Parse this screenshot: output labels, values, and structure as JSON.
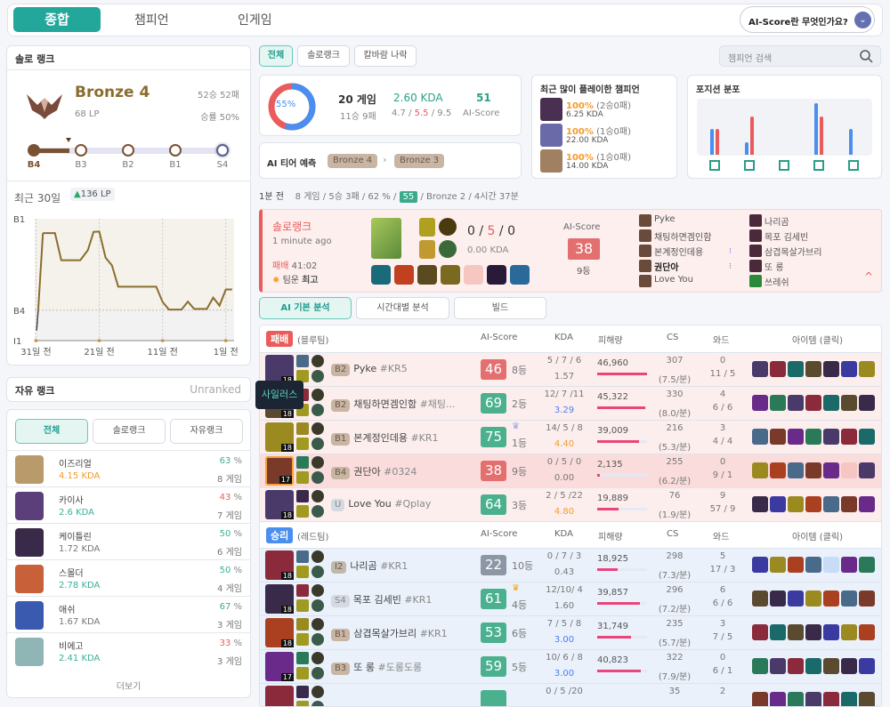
{
  "colors": {
    "accent": "#22a79a",
    "win": "#4a8ef0",
    "loss": "#ea5b5b",
    "bronze": "#8a6d2e",
    "score_green": "#4bb08e",
    "score_red": "#e36f6f",
    "score_gray": "#8c96a5"
  },
  "nav": {
    "tabs": [
      "종합",
      "챔피언",
      "인게임"
    ],
    "help": "AI-Score란 무엇인가요?"
  },
  "solo": {
    "title": "솔로 랭크",
    "tier": "Bronze 4",
    "lp": "68 LP",
    "record": "52승 52패",
    "winrate": "승률 50%",
    "steps": [
      "B4",
      "B3",
      "B2",
      "B1",
      "S4"
    ],
    "recent_label": "최근 30일",
    "recent_delta": "136 LP"
  },
  "chart_data": {
    "type": "line",
    "ylabel": "",
    "xlabel": "",
    "y_ticks": [
      "B1",
      "B4",
      "I1"
    ],
    "x_ticks": [
      "31일 전",
      "21일 전",
      "11일 전",
      "1일 전"
    ],
    "y_tick_values_lp": [
      400,
      100,
      0
    ],
    "x_tick_values_days_ago": [
      31,
      21,
      11,
      1
    ],
    "xlim_days_ago": [
      31.2,
      -0.3
    ],
    "ylim_lp": [
      0,
      400
    ],
    "grid": true,
    "color": "#8a6d2e",
    "points": [
      [
        30.9,
        33
      ],
      [
        29.9,
        353
      ],
      [
        28,
        353
      ],
      [
        27,
        264
      ],
      [
        24,
        264
      ],
      [
        22.8,
        297
      ],
      [
        21.9,
        357
      ],
      [
        21,
        358
      ],
      [
        20,
        272
      ],
      [
        19,
        247
      ],
      [
        18,
        177
      ],
      [
        12,
        177
      ],
      [
        11,
        127
      ],
      [
        10,
        102
      ],
      [
        8,
        102
      ],
      [
        7,
        128
      ],
      [
        6,
        104
      ],
      [
        4,
        104
      ],
      [
        3,
        141
      ],
      [
        2,
        115
      ],
      [
        1,
        168
      ],
      [
        0,
        168
      ]
    ]
  },
  "flex": {
    "title": "자유 랭크",
    "status": "Unranked"
  },
  "champ_stats": {
    "tabs": [
      "전체",
      "솔로랭크",
      "자유랭크"
    ],
    "more": "더보기",
    "items": [
      {
        "name": "이즈리얼",
        "kda": "4.15 KDA",
        "kda_color": "#f39c2b",
        "wr": "63",
        "wr_color": "#3aaf9a",
        "games": "8 게임",
        "img": "#b99a6a"
      },
      {
        "name": "카이사",
        "kda": "2.6 KDA",
        "kda_color": "#3aaf9a",
        "wr": "43",
        "wr_color": "#e85c5c",
        "games": "7 게임",
        "img": "#5a3f7a"
      },
      {
        "name": "케이틀린",
        "kda": "1.72 KDA",
        "kda_color": "#777",
        "wr": "50",
        "wr_color": "#3aaf9a",
        "games": "6 게임",
        "img": "#3a2a4a"
      },
      {
        "name": "스몰더",
        "kda": "2.78 KDA",
        "kda_color": "#3aaf9a",
        "wr": "50",
        "wr_color": "#3aaf9a",
        "games": "4 게임",
        "img": "#c8603a"
      },
      {
        "name": "애쉬",
        "kda": "1.67 KDA",
        "kda_color": "#777",
        "wr": "67",
        "wr_color": "#3aaf9a",
        "games": "3 게임",
        "img": "#3a5ab0"
      },
      {
        "name": "비에고",
        "kda": "2.41 KDA",
        "kda_color": "#3aaf9a",
        "wr": "33",
        "wr_color": "#e85c5c",
        "games": "3 게임",
        "img": "#8fb5b5"
      }
    ]
  },
  "filters": {
    "tabs": [
      "전체",
      "솔로랭크",
      "칼바람 나락"
    ],
    "search_placeholder": "챔피언 검색"
  },
  "summary": {
    "winrate": "55%",
    "winrate_value": 55,
    "games": "20 게임",
    "record": "11승 9패",
    "kda": "2.60 KDA",
    "k": "4.7",
    "d": "5.5",
    "a": "9.5",
    "score": "51",
    "score_label": "AI-Score"
  },
  "ai_tier": {
    "label": "AI 티어 예측",
    "from": "Bronze 4",
    "to": "Bronze 3"
  },
  "recent_champs": {
    "title": "최근 많이 플레이한 챔피언",
    "items": [
      {
        "pct": "100%",
        "rec": "(2승0패)",
        "kda": "6.25 KDA",
        "img": "#4a3050"
      },
      {
        "pct": "100%",
        "rec": "(1승0패)",
        "kda": "22.00 KDA",
        "img": "#6a6aa8"
      },
      {
        "pct": "100%",
        "rec": "(1승0패)",
        "kda": "14.00 KDA",
        "img": "#a08060"
      }
    ]
  },
  "positions": {
    "title": "포지션 분포",
    "series": [
      {
        "values": [
          2,
          1,
          0,
          4,
          2
        ],
        "color": "#4a8ef0"
      },
      {
        "values": [
          2,
          3,
          0,
          3,
          0
        ],
        "color": "#ea5b5b"
      }
    ],
    "icons": [
      "top-icon",
      "jungle-icon",
      "mid-icon",
      "bottom-icon",
      "support-icon"
    ]
  },
  "session": {
    "ago": "1분 전",
    "games": "8 게임",
    "record": "5승 3패",
    "wr": "62 %",
    "score": "55",
    "tier": "Bronze 2",
    "time": "4시간 37분"
  },
  "match": {
    "queue": "솔로랭크",
    "ago": "1 minute ago",
    "result": "패배",
    "duration": "41:02",
    "luck_label": "팀운",
    "luck": "최고",
    "k": "0",
    "d": "5",
    "a": "0",
    "kda": "0.00 KDA",
    "score_label": "AI-Score",
    "score": "38",
    "rank": "9등",
    "blue": [
      "Pyke",
      "채팅하면겜인함",
      "본계정인데용",
      "권단아",
      "Love You"
    ],
    "red": [
      "나리곰",
      "목포 김세빈",
      "삼겹목살가브리",
      "또 롱",
      "쓰레쉬"
    ]
  },
  "analysis_tabs": [
    "AI 기본 분석",
    "시간대별 분석",
    "빌드"
  ],
  "table": {
    "headers": [
      "AI-Score",
      "KDA",
      "피해량",
      "CS",
      "와드",
      "아이템 (클릭)"
    ],
    "max_damage": 46960,
    "teams": [
      {
        "result": "패배",
        "side": "(블루팀)",
        "color": "#ea5b5b",
        "bg": "#fdeeee",
        "rows": [
          {
            "tier": "B2",
            "name": "Pyke",
            "tagline": "#KR5",
            "lv": "18",
            "score": "46",
            "sc": "red",
            "rank": "8등",
            "kda": "5 / 7 / 6",
            "ratio": "1.57",
            "rc": "#777",
            "dmg": 46960,
            "dmg_text": "46,960",
            "cs": "307",
            "csm": "(7.5/분)",
            "ward": "0",
            "wards": "11 / 5"
          },
          {
            "tier": "B2",
            "name": "채팅하면겜인함",
            "tagline": "#채팅...",
            "lv": "18",
            "score": "69",
            "sc": "green",
            "rank": "2등",
            "kda": "12/ 7 /11",
            "ratio": "3.29",
            "rc": "#4a7ef0",
            "dmg": 45322,
            "dmg_text": "45,322",
            "cs": "330",
            "csm": "(8.0/분)",
            "ward": "4",
            "wards": "6 / 6"
          },
          {
            "tier": "B1",
            "name": "본계정인데용",
            "tagline": "#KR1",
            "lv": "18",
            "score": "75",
            "sc": "green",
            "rank": "1등",
            "crown": "#9aa6d8",
            "kda": "14/ 5 / 8",
            "ratio": "4.40",
            "rc": "#f39c2b",
            "dmg": 39009,
            "dmg_text": "39,009",
            "cs": "216",
            "csm": "(5.3/분)",
            "ward": "3",
            "wards": "4 / 4"
          },
          {
            "tier": "B4",
            "name": "권단아",
            "tagline": "#0324",
            "lv": "17",
            "score": "38",
            "sc": "red",
            "rank": "9등",
            "kda": "0 / 5 / 0",
            "ratio": "0.00",
            "rc": "#777",
            "dmg": 2135,
            "dmg_text": "2,135",
            "cs": "255",
            "csm": "(6.2/분)",
            "ward": "0",
            "wards": "9 / 1",
            "me": true,
            "empty": 5
          },
          {
            "tier": "U",
            "name": "Love You",
            "tagline": "#Qplay",
            "lv": "18",
            "score": "64",
            "sc": "green",
            "rank": "3등",
            "kda": "2 / 5 /22",
            "ratio": "4.80",
            "rc": "#f39c2b",
            "dmg": 19889,
            "dmg_text": "19,889",
            "cs": "76",
            "csm": "(1.9/분)",
            "ward": "9",
            "wards": "57 / 9"
          }
        ]
      },
      {
        "result": "승리",
        "side": "(레드팀)",
        "color": "#4a8ef0",
        "bg": "#eaf1fb",
        "rows": [
          {
            "tier": "I2",
            "name": "나리곰",
            "tagline": "#KR1",
            "lv": "18",
            "score": "22",
            "sc": "gray",
            "rank": "10등",
            "kda": "0 / 7 / 3",
            "ratio": "0.43",
            "rc": "#777",
            "dmg": 18925,
            "dmg_text": "18,925",
            "cs": "298",
            "csm": "(7.3/분)",
            "ward": "5",
            "wards": "17 / 3",
            "empty": 4
          },
          {
            "tier": "S4",
            "name": "목포 김세빈",
            "tagline": "#KR1",
            "lv": "18",
            "score": "61",
            "sc": "green",
            "rank": "4등",
            "crown": "#f2a51a",
            "kda": "12/10/ 4",
            "ratio": "1.60",
            "rc": "#777",
            "dmg": 39857,
            "dmg_text": "39,857",
            "cs": "296",
            "csm": "(7.2/분)",
            "ward": "6",
            "wards": "6 / 6"
          },
          {
            "tier": "B1",
            "name": "삼겹목살가브리",
            "tagline": "#KR1",
            "lv": "18",
            "score": "53",
            "sc": "green",
            "rank": "6등",
            "kda": "7 / 5 / 8",
            "ratio": "3.00",
            "rc": "#4a7ef0",
            "dmg": 31749,
            "dmg_text": "31,749",
            "cs": "235",
            "csm": "(5.7/분)",
            "ward": "3",
            "wards": "7 / 5"
          },
          {
            "tier": "B3",
            "name": "또 롱",
            "tagline": "#도롱도롱",
            "lv": "17",
            "score": "59",
            "sc": "green",
            "rank": "5등",
            "kda": "10/ 6 / 8",
            "ratio": "3.00",
            "rc": "#4a7ef0",
            "dmg": 40823,
            "dmg_text": "40,823",
            "cs": "322",
            "csm": "(7.9/분)",
            "ward": "0",
            "wards": "6 / 1"
          },
          {
            "kda": "0 / 5 /20",
            "cs": "35",
            "ward": "2",
            "sc": "green",
            "partial": true
          }
        ]
      }
    ]
  },
  "tooltip": "사일러스"
}
